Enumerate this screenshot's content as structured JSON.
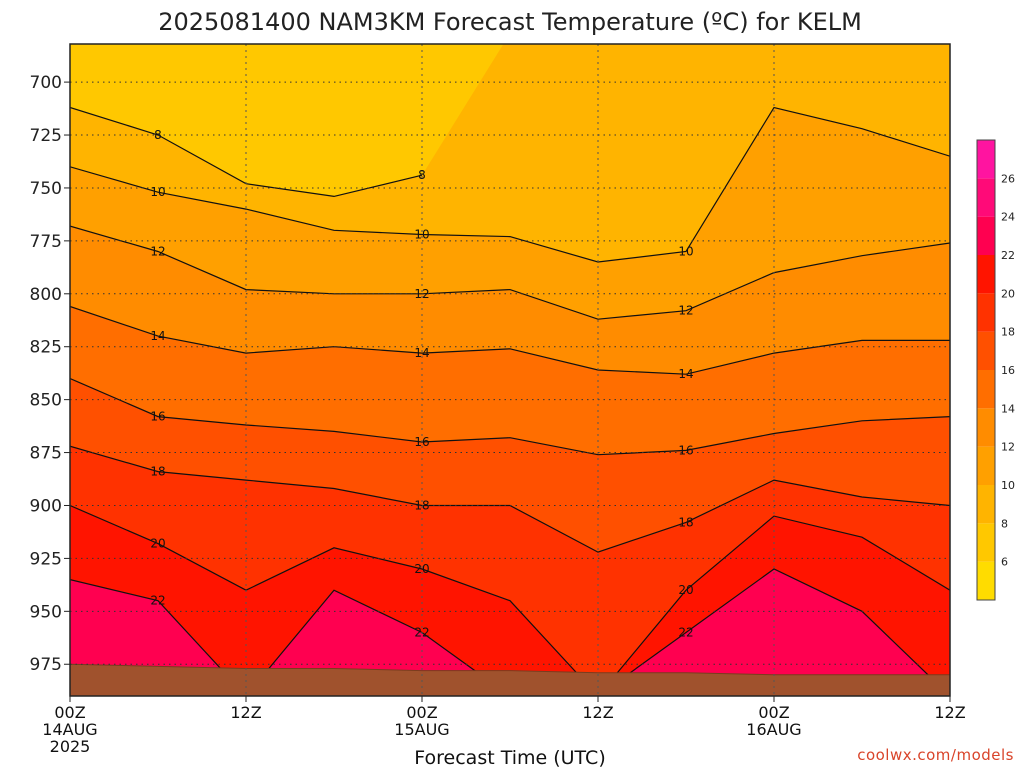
{
  "page": {
    "title": "2025081400 NAM3KM Forecast Temperature (ºC) for KELM",
    "credit": "coolwx.com/models"
  },
  "chart_data": {
    "type": "heatmap",
    "title": "2025081400 NAM3KM Forecast Temperature (ºC) for KELM",
    "xlabel": "Forecast Time (UTC)",
    "ylabel": "",
    "x_range_hours": [
      0,
      60
    ],
    "y_range_hpa": [
      682,
      990
    ],
    "y_ticks": [
      "700",
      "725",
      "750",
      "775",
      "800",
      "825",
      "850",
      "875",
      "900",
      "925",
      "950",
      "975"
    ],
    "x_ticks": [
      {
        "hour": 0,
        "lines": [
          "00Z",
          "14AUG",
          "2025"
        ]
      },
      {
        "hour": 12,
        "lines": [
          "12Z"
        ]
      },
      {
        "hour": 24,
        "lines": [
          "00Z",
          "15AUG"
        ]
      },
      {
        "hour": 36,
        "lines": [
          "12Z"
        ]
      },
      {
        "hour": 48,
        "lines": [
          "00Z",
          "16AUG"
        ]
      },
      {
        "hour": 60,
        "lines": [
          "12Z"
        ]
      }
    ],
    "grid": true,
    "contour_interval": 2,
    "colorbar": {
      "ticks": [
        "6",
        "8",
        "10",
        "12",
        "14",
        "16",
        "18",
        "20",
        "22",
        "24",
        "26"
      ],
      "levels": [
        4,
        6,
        8,
        10,
        12,
        14,
        16,
        18,
        20,
        22,
        24,
        26,
        28
      ],
      "colors": [
        "#ffdc00",
        "#ffc800",
        "#ffb400",
        "#ffa000",
        "#ff8c00",
        "#ff6e00",
        "#ff5000",
        "#ff3200",
        "#ff1400",
        "#ff0050",
        "#ff0a78",
        "#ff14a0"
      ]
    },
    "contour_series": [
      {
        "name": "8",
        "hours": [
          0,
          6,
          12,
          18,
          24,
          30,
          36,
          42,
          48,
          54,
          60
        ],
        "hpa": [
          712,
          725,
          748,
          754,
          744,
          null,
          null,
          null,
          null,
          null,
          null
        ]
      },
      {
        "name": "10",
        "hours": [
          0,
          6,
          12,
          18,
          24,
          30,
          36,
          42,
          48,
          54,
          60
        ],
        "hpa": [
          740,
          752,
          760,
          770,
          772,
          773,
          785,
          780,
          712,
          722,
          735
        ]
      },
      {
        "name": "12",
        "hours": [
          0,
          6,
          12,
          18,
          24,
          30,
          36,
          42,
          48,
          54,
          60
        ],
        "hpa": [
          768,
          780,
          798,
          800,
          800,
          798,
          812,
          808,
          790,
          782,
          776
        ]
      },
      {
        "name": "14",
        "hours": [
          0,
          6,
          12,
          18,
          24,
          30,
          36,
          42,
          48,
          54,
          60
        ],
        "hpa": [
          806,
          820,
          828,
          825,
          828,
          826,
          836,
          838,
          828,
          822,
          822
        ]
      },
      {
        "name": "16",
        "hours": [
          0,
          6,
          12,
          18,
          24,
          30,
          36,
          42,
          48,
          54,
          60
        ],
        "hpa": [
          840,
          858,
          862,
          865,
          870,
          868,
          876,
          874,
          866,
          860,
          858
        ]
      },
      {
        "name": "18",
        "hours": [
          0,
          6,
          12,
          18,
          24,
          30,
          36,
          42,
          48,
          54,
          60
        ],
        "hpa": [
          872,
          884,
          888,
          892,
          900,
          900,
          922,
          908,
          888,
          896,
          900
        ]
      },
      {
        "name": "20",
        "hours": [
          0,
          6,
          12,
          18,
          24,
          30,
          36,
          42,
          48,
          54,
          60
        ],
        "hpa": [
          900,
          918,
          940,
          920,
          930,
          945,
          990,
          940,
          905,
          915,
          940
        ]
      },
      {
        "name": "22",
        "hours": [
          0,
          6,
          12,
          18,
          24,
          30,
          36,
          42,
          48,
          54,
          60
        ],
        "hpa": [
          935,
          945,
          990,
          940,
          960,
          990,
          990,
          960,
          930,
          950,
          990
        ]
      }
    ],
    "surface_hpa": [
      975,
      976,
      977,
      977,
      978,
      978,
      979,
      979,
      980,
      980,
      980
    ]
  }
}
